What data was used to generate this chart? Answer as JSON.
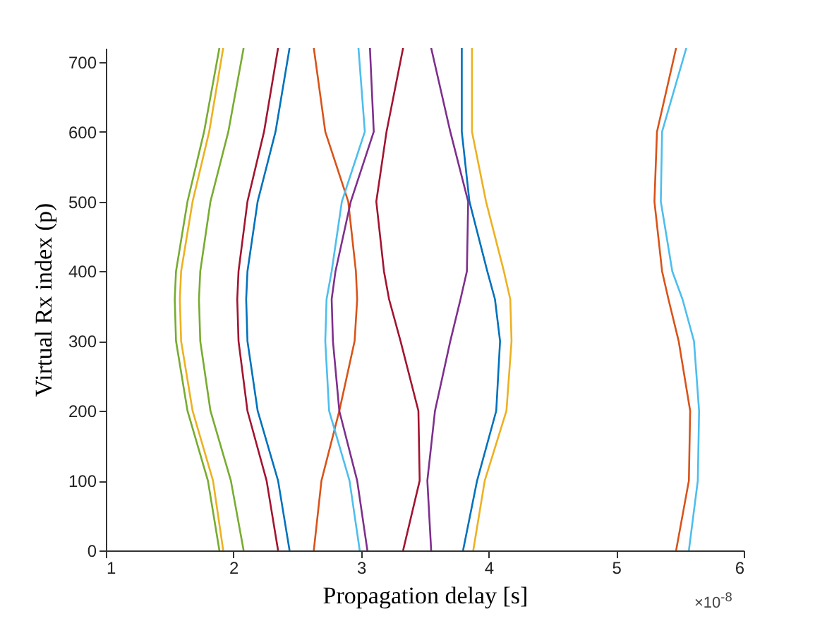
{
  "chart_data": {
    "type": "line",
    "xlabel": "Propagation delay [s]",
    "ylabel": "Virtual Rx index (p)",
    "annotations": [
      "×10$^{-8}$"
    ],
    "xlim": [
      1,
      6
    ],
    "xticks": [
      1,
      2,
      3,
      4,
      5,
      6
    ],
    "ylim": [
      0,
      720
    ],
    "yticks": [
      0,
      100,
      200,
      300,
      400,
      500,
      600,
      700
    ],
    "series": [
      {
        "color": "#77ac30",
        "x": [
          1.89,
          1.8,
          1.64,
          1.55,
          1.54,
          1.55,
          1.64,
          1.77,
          1.89
        ],
        "values": [
          0,
          100,
          200,
          300,
          360,
          400,
          500,
          600,
          720
        ]
      },
      {
        "color": "#edb120",
        "x": [
          1.92,
          1.84,
          1.68,
          1.59,
          1.58,
          1.59,
          1.68,
          1.81,
          1.92
        ],
        "values": [
          0,
          100,
          200,
          300,
          360,
          400,
          500,
          600,
          720
        ]
      },
      {
        "color": "#77ac30",
        "x": [
          2.08,
          1.98,
          1.82,
          1.74,
          1.73,
          1.74,
          1.82,
          1.96,
          2.08
        ],
        "values": [
          0,
          100,
          200,
          300,
          360,
          400,
          500,
          600,
          720
        ]
      },
      {
        "color": "#a2142f",
        "x": [
          2.35,
          2.26,
          2.11,
          2.04,
          2.03,
          2.04,
          2.11,
          2.24,
          2.35
        ],
        "values": [
          0,
          100,
          200,
          300,
          360,
          400,
          500,
          600,
          720
        ]
      },
      {
        "color": "#0072bd",
        "x": [
          2.44,
          2.35,
          2.19,
          2.11,
          2.1,
          2.11,
          2.19,
          2.33,
          2.44
        ],
        "values": [
          0,
          100,
          200,
          300,
          360,
          400,
          500,
          600,
          720
        ]
      },
      {
        "color": "#d95319",
        "x": [
          2.63,
          2.69,
          2.83,
          2.95,
          2.97,
          2.96,
          2.9,
          2.72,
          2.63
        ],
        "values": [
          0,
          100,
          200,
          300,
          360,
          400,
          500,
          600,
          720
        ]
      },
      {
        "color": "#4dbeee",
        "x": [
          2.99,
          2.91,
          2.75,
          2.72,
          2.73,
          2.77,
          2.85,
          3.03,
          2.98
        ],
        "values": [
          0,
          100,
          200,
          300,
          360,
          400,
          500,
          600,
          720
        ]
      },
      {
        "color": "#7e2f8e",
        "x": [
          3.05,
          2.97,
          2.83,
          2.78,
          2.77,
          2.8,
          2.92,
          3.1,
          3.07
        ],
        "values": [
          0,
          100,
          200,
          300,
          360,
          400,
          500,
          600,
          720
        ]
      },
      {
        "color": "#a2142f",
        "x": [
          3.33,
          3.46,
          3.45,
          3.31,
          3.22,
          3.18,
          3.12,
          3.2,
          3.33
        ],
        "values": [
          0,
          100,
          200,
          300,
          360,
          400,
          500,
          600,
          720
        ]
      },
      {
        "color": "#7e2f8e",
        "x": [
          3.55,
          3.52,
          3.58,
          3.7,
          3.78,
          3.83,
          3.84,
          3.7,
          3.55
        ],
        "values": [
          0,
          100,
          200,
          300,
          360,
          400,
          500,
          600,
          720
        ]
      },
      {
        "color": "#0072bd",
        "x": [
          3.8,
          3.91,
          4.06,
          4.09,
          4.05,
          3.99,
          3.85,
          3.79,
          3.79
        ],
        "values": [
          0,
          100,
          200,
          300,
          360,
          400,
          500,
          600,
          720
        ]
      },
      {
        "color": "#edb120",
        "x": [
          3.88,
          3.97,
          4.14,
          4.18,
          4.17,
          4.12,
          3.98,
          3.87,
          3.87
        ],
        "values": [
          0,
          100,
          200,
          300,
          360,
          400,
          500,
          600,
          720
        ]
      },
      {
        "color": "#d95319",
        "x": [
          5.47,
          5.57,
          5.58,
          5.49,
          5.41,
          5.36,
          5.3,
          5.32,
          5.47
        ],
        "values": [
          0,
          100,
          200,
          300,
          360,
          400,
          500,
          600,
          720
        ]
      },
      {
        "color": "#4dbeee",
        "x": [
          5.57,
          5.64,
          5.65,
          5.61,
          5.52,
          5.44,
          5.35,
          5.36,
          5.55
        ],
        "values": [
          0,
          100,
          200,
          300,
          360,
          400,
          500,
          600,
          720
        ]
      }
    ]
  }
}
